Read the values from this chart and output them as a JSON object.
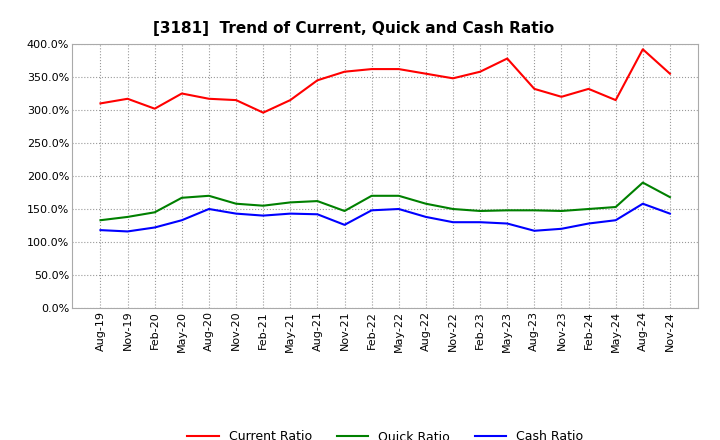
{
  "title": "[3181]  Trend of Current, Quick and Cash Ratio",
  "labels": [
    "Aug-19",
    "Nov-19",
    "Feb-20",
    "May-20",
    "Aug-20",
    "Nov-20",
    "Feb-21",
    "May-21",
    "Aug-21",
    "Nov-21",
    "Feb-22",
    "May-22",
    "Aug-22",
    "Nov-22",
    "Feb-23",
    "May-23",
    "Aug-23",
    "Nov-23",
    "Feb-24",
    "May-24",
    "Aug-24",
    "Nov-24"
  ],
  "current_ratio": [
    310,
    317,
    302,
    325,
    317,
    315,
    296,
    315,
    345,
    358,
    362,
    362,
    355,
    348,
    358,
    378,
    332,
    320,
    332,
    315,
    392,
    355
  ],
  "quick_ratio": [
    133,
    138,
    145,
    167,
    170,
    158,
    155,
    160,
    162,
    147,
    170,
    170,
    158,
    150,
    147,
    148,
    148,
    147,
    150,
    153,
    190,
    168
  ],
  "cash_ratio": [
    118,
    116,
    122,
    133,
    150,
    143,
    140,
    143,
    142,
    126,
    148,
    150,
    138,
    130,
    130,
    128,
    117,
    120,
    128,
    133,
    158,
    143
  ],
  "current_color": "#FF0000",
  "quick_color": "#008000",
  "cash_color": "#0000FF",
  "ylim": [
    0,
    400
  ],
  "yticks": [
    0,
    50,
    100,
    150,
    200,
    250,
    300,
    350,
    400
  ],
  "background_color": "#FFFFFF",
  "grid_color": "#999999",
  "title_fontsize": 11,
  "tick_fontsize": 8,
  "legend_labels": [
    "Current Ratio",
    "Quick Ratio",
    "Cash Ratio"
  ],
  "linewidth": 1.5
}
